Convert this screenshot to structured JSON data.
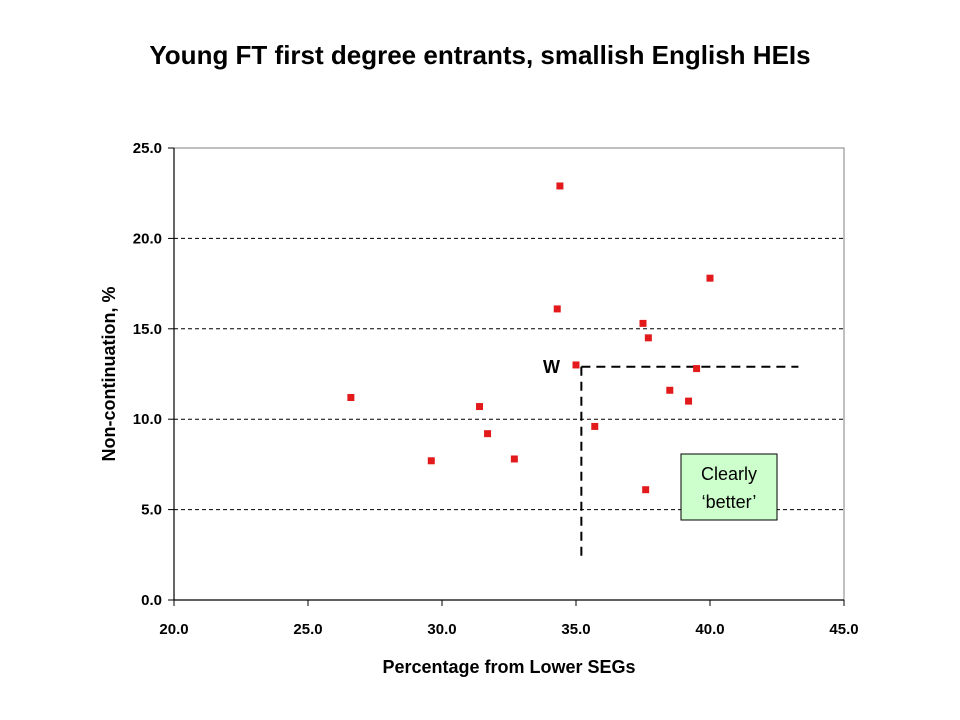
{
  "chart_data": {
    "type": "scatter",
    "title": "Young FT first degree entrants, smallish English HEIs",
    "xlabel": "Percentage from Lower SEGs",
    "ylabel": "Non-continuation, %",
    "xlim": [
      20.0,
      45.0
    ],
    "ylim": [
      0.0,
      25.0
    ],
    "xticks": [
      "20.0",
      "25.0",
      "30.0",
      "35.0",
      "40.0",
      "45.0"
    ],
    "yticks": [
      "0.0",
      "5.0",
      "10.0",
      "15.0",
      "20.0",
      "25.0"
    ],
    "grid": "horizontal-dashed",
    "marker_color": "#e31a1c",
    "points": [
      {
        "x": 26.6,
        "y": 11.2
      },
      {
        "x": 29.6,
        "y": 7.7
      },
      {
        "x": 31.4,
        "y": 10.7
      },
      {
        "x": 31.7,
        "y": 9.2
      },
      {
        "x": 32.7,
        "y": 7.8
      },
      {
        "x": 34.3,
        "y": 16.1
      },
      {
        "x": 34.4,
        "y": 22.9
      },
      {
        "x": 35.0,
        "y": 13.0
      },
      {
        "x": 35.7,
        "y": 9.6
      },
      {
        "x": 37.5,
        "y": 15.3
      },
      {
        "x": 37.6,
        "y": 6.1
      },
      {
        "x": 37.7,
        "y": 14.5
      },
      {
        "x": 38.5,
        "y": 11.6
      },
      {
        "x": 39.2,
        "y": 11.0
      },
      {
        "x": 39.5,
        "y": 12.8
      },
      {
        "x": 40.0,
        "y": 17.8
      }
    ],
    "annotations": {
      "w_label": "W",
      "reference_point": {
        "x": 35.2,
        "y": 12.9
      },
      "hline_to_x": 43.3,
      "vline_to_y": 2.4,
      "box_lines": [
        "Clearly",
        "‘better’"
      ],
      "box_fill": "#ccffcc"
    }
  }
}
